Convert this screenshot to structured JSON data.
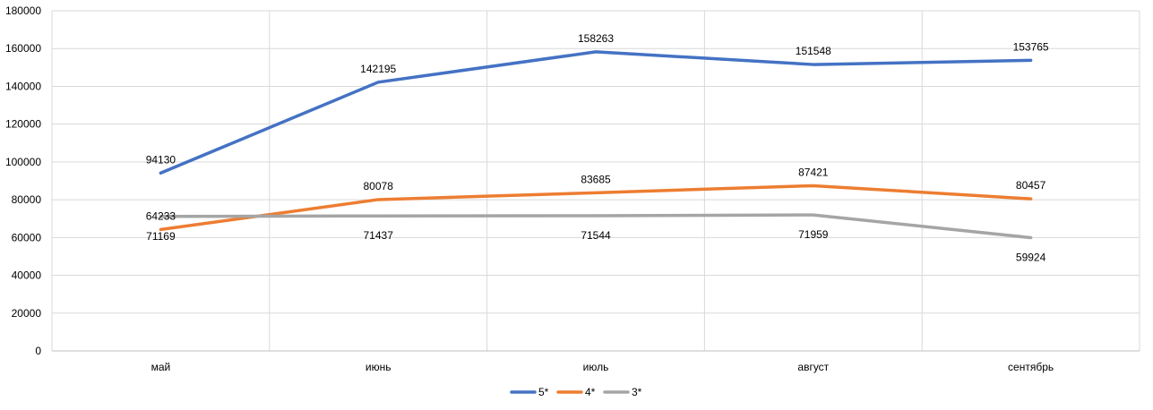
{
  "chart_data": {
    "type": "line",
    "categories": [
      "май",
      "июнь",
      "июль",
      "август",
      "сентябрь"
    ],
    "series": [
      {
        "name": "5*",
        "color": "#4472C4",
        "values": [
          94130,
          142195,
          158263,
          151548,
          153765
        ],
        "label_pos": [
          "above",
          "above",
          "above",
          "above",
          "above"
        ]
      },
      {
        "name": "4*",
        "color": "#ED7D31",
        "values": [
          64233,
          80078,
          83685,
          87421,
          80457
        ],
        "label_pos": [
          "above",
          "above",
          "above",
          "above",
          "above"
        ]
      },
      {
        "name": "3*",
        "color": "#A5A5A5",
        "values": [
          71169,
          71437,
          71544,
          71959,
          59924
        ],
        "label_pos": [
          "below",
          "below",
          "below",
          "below",
          "below"
        ]
      }
    ],
    "yticks": [
      0,
      20000,
      40000,
      60000,
      80000,
      100000,
      120000,
      140000,
      160000,
      180000
    ],
    "ylim": [
      0,
      180000
    ],
    "grid": true,
    "legend_position": "bottom-center"
  }
}
